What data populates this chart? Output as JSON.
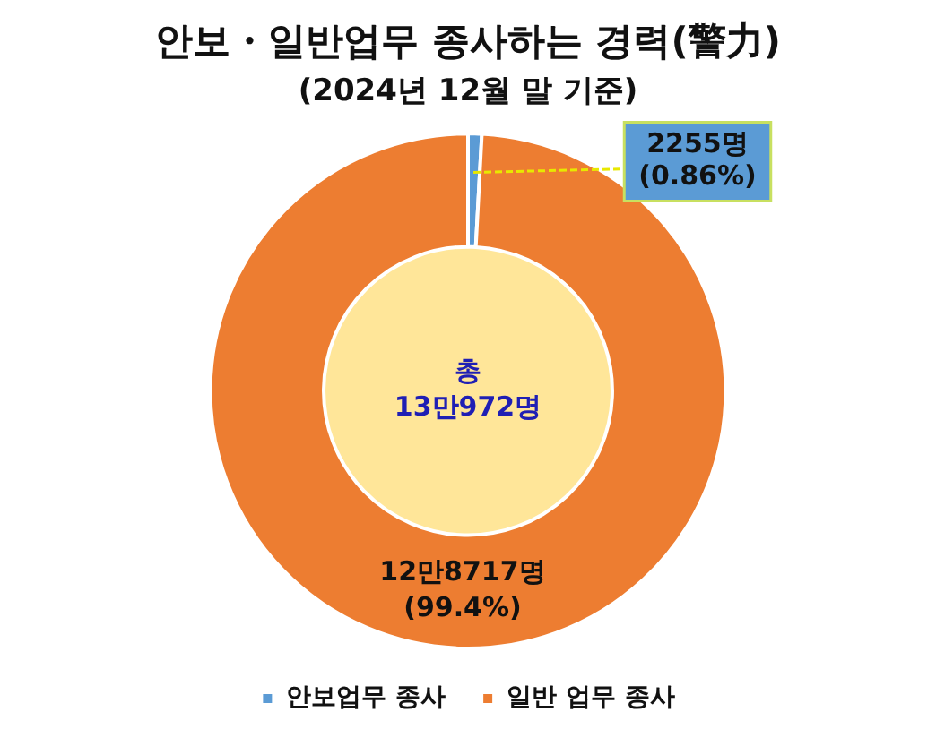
{
  "chart_data": {
    "type": "donut",
    "title": "안보・일반업무 종사하는 경력(警力)",
    "subtitle": "(2024년 12월 말 기준)",
    "categories": [
      "안보업무 종사",
      "일반 업무 종사"
    ],
    "values": [
      0.86,
      99.4
    ],
    "colors": [
      "#5b9bd5",
      "#ed7d31"
    ],
    "value_labels": [
      "2255명\n(0.86%)",
      "12만8717명\n(99.4%)"
    ],
    "annotations": [
      "총\n13만972명"
    ],
    "legend": "bottom"
  }
}
